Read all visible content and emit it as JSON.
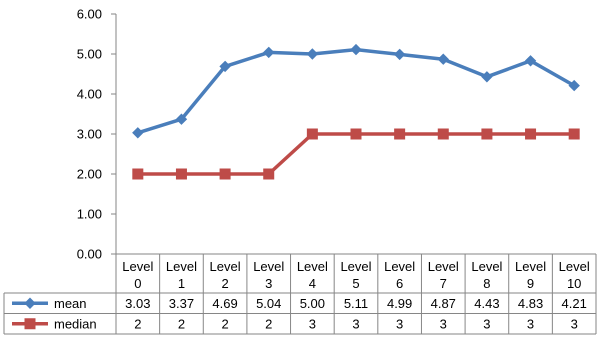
{
  "chart_data": {
    "type": "line",
    "categories": [
      [
        "Level",
        "0"
      ],
      [
        "Level",
        "1"
      ],
      [
        "Level",
        "2"
      ],
      [
        "Level",
        "3"
      ],
      [
        "Level",
        "4"
      ],
      [
        "Level",
        "5"
      ],
      [
        "Level",
        "6"
      ],
      [
        "Level",
        "7"
      ],
      [
        "Level",
        "8"
      ],
      [
        "Level",
        "9"
      ],
      [
        "Level",
        "10"
      ]
    ],
    "ylim": [
      0,
      6
    ],
    "yticks": [
      "0.00",
      "1.00",
      "2.00",
      "3.00",
      "4.00",
      "5.00",
      "6.00"
    ],
    "grid": false,
    "legend": "data-table-left",
    "series": [
      {
        "name": "mean",
        "color": "#4a7ebb",
        "marker": "diamond",
        "values": [
          3.03,
          3.37,
          4.69,
          5.04,
          5.0,
          5.11,
          4.99,
          4.87,
          4.43,
          4.83,
          4.21
        ],
        "labels": [
          "3.03",
          "3.37",
          "4.69",
          "5.04",
          "5.00",
          "5.11",
          "4.99",
          "4.87",
          "4.43",
          "4.83",
          "4.21"
        ]
      },
      {
        "name": "median",
        "color": "#be4b48",
        "marker": "square",
        "values": [
          2,
          2,
          2,
          2,
          3,
          3,
          3,
          3,
          3,
          3,
          3
        ],
        "labels": [
          "2",
          "2",
          "2",
          "2",
          "3",
          "3",
          "3",
          "3",
          "3",
          "3",
          "3"
        ]
      }
    ]
  }
}
